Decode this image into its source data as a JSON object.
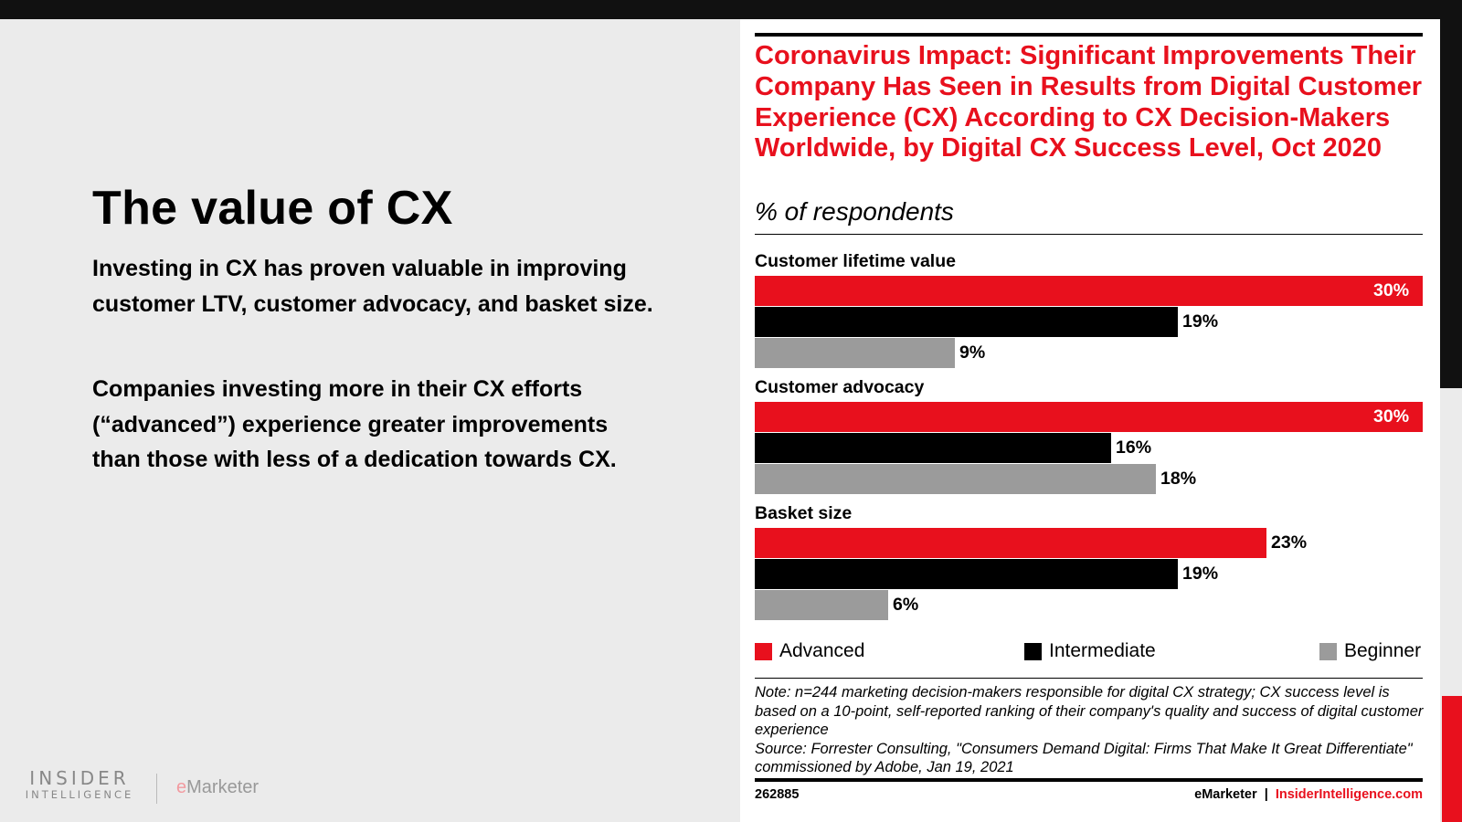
{
  "slide": {
    "title": "The value of CX",
    "paragraph1": "Investing in CX has proven valuable in improving customer LTV, customer advocacy, and basket size.",
    "paragraph2": "Companies investing more in their CX efforts (“advanced”) experience greater improvements than those with less of a dedication towards CX.",
    "logo_insider_line1": "INSIDER",
    "logo_insider_line2": "INTELLIGENCE",
    "logo_emarketer_e": "e",
    "logo_emarketer_rest": "Marketer"
  },
  "colors": {
    "accent_red": "#e8101d",
    "intermediate_black": "#000000",
    "beginner_gray": "#9b9b9b",
    "background_gray": "#ebebeb"
  },
  "chart_data": {
    "type": "bar",
    "orientation": "horizontal",
    "title": "Coronavirus Impact: Significant Improvements Their Company Has Seen in Results from Digital Customer Experience (CX) According to CX Decision-Makers Worldwide, by Digital CX Success Level, Oct 2020",
    "subtitle": "% of respondents",
    "categories": [
      "Customer lifetime value",
      "Customer advocacy",
      "Basket size"
    ],
    "series": [
      {
        "name": "Advanced",
        "values": [
          30,
          30,
          23
        ],
        "labels": [
          "30%",
          "30%",
          "23%"
        ]
      },
      {
        "name": "Intermediate",
        "values": [
          19,
          16,
          19
        ],
        "labels": [
          "19%",
          "16%",
          "19%"
        ]
      },
      {
        "name": "Beginner",
        "values": [
          9,
          18,
          6
        ],
        "labels": [
          "9%",
          "18%",
          "6%"
        ]
      }
    ],
    "xlim": [
      0,
      30
    ],
    "legend_position": "bottom",
    "grid": false,
    "note": "Note: n=244 marketing decision-makers responsible for digital CX strategy; CX success level is based on a 10-point, self-reported ranking of their company's quality and success of digital customer experience",
    "source": "Source: Forrester Consulting, \"Consumers Demand Digital: Firms That Make It Great Differentiate\" commissioned by Adobe, Jan 19, 2021",
    "chart_id": "262885",
    "footer_brand_left": "eMarketer",
    "footer_separator": "|",
    "footer_brand_right": "InsiderIntelligence.com"
  }
}
